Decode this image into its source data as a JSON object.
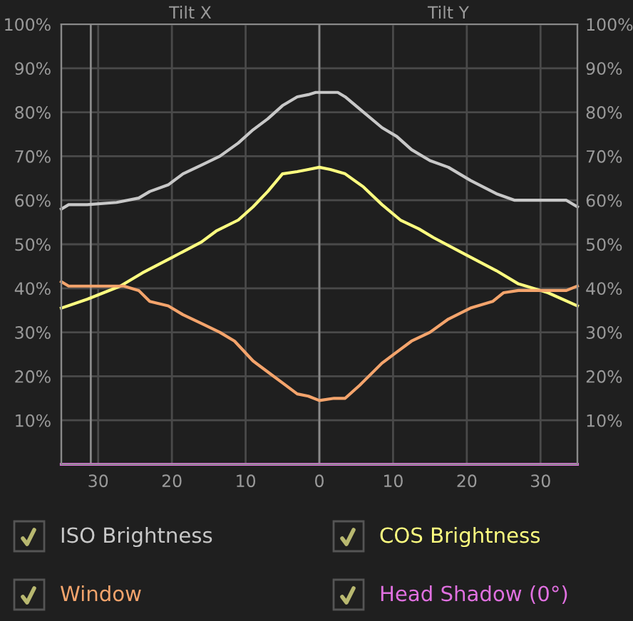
{
  "chart_data": {
    "type": "line",
    "annotations": [
      "Tilt X",
      "Tilt Y"
    ],
    "xlim": [
      -35,
      35
    ],
    "xticks": [
      {
        "value": -30,
        "label": "30"
      },
      {
        "value": -20,
        "label": "20"
      },
      {
        "value": -10,
        "label": "10"
      },
      0,
      10,
      20,
      30
    ],
    "ylim": [
      0,
      100
    ],
    "yticks": [
      {
        "value": 10,
        "label": "10%"
      },
      {
        "value": 20,
        "label": "20%"
      },
      {
        "value": 30,
        "label": "30%"
      },
      {
        "value": 40,
        "label": "40%"
      },
      {
        "value": 50,
        "label": "50%"
      },
      {
        "value": 60,
        "label": "60%"
      },
      {
        "value": 70,
        "label": "70%"
      },
      {
        "value": 80,
        "label": "80%"
      },
      {
        "value": 90,
        "label": "90%"
      },
      {
        "value": 100,
        "label": "100%"
      }
    ],
    "y2lim": [
      0,
      100
    ],
    "y2ticks": [
      {
        "value": 10,
        "label": "10%"
      },
      {
        "value": 20,
        "label": "20%"
      },
      {
        "value": 30,
        "label": "30%"
      },
      {
        "value": 40,
        "label": "40%"
      },
      {
        "value": 50,
        "label": "50%"
      },
      {
        "value": 60,
        "label": "60%"
      },
      {
        "value": 70,
        "label": "70%"
      },
      {
        "value": 80,
        "label": "80%"
      },
      {
        "value": 90,
        "label": "90%"
      },
      {
        "value": 100,
        "label": "100%"
      }
    ],
    "grid": true,
    "legend": "bottom",
    "marker": "none",
    "line_style": "solid",
    "ref_lines": [
      {
        "axis": "x",
        "value": -31,
        "color": "#8a8a8a"
      },
      {
        "axis": "x",
        "value": 0,
        "color": "#8a8a8a"
      }
    ],
    "series": [
      {
        "name": "ISO Brightness",
        "color": "#c8c8c8",
        "x": [
          -35,
          -34,
          -31.5,
          -27.5,
          -24.5,
          -23,
          -20.5,
          -18.5,
          -16,
          -13.5,
          -11,
          -9,
          -7,
          -5,
          -3,
          -1.5,
          -0.5,
          2.5,
          3.5,
          6,
          8.5,
          10.5,
          12.5,
          15,
          17.5,
          20.5,
          24,
          26.5,
          29,
          33.5,
          35
        ],
        "values": [
          58,
          59,
          59,
          59.5,
          60.5,
          62,
          63.5,
          66,
          68,
          70,
          73,
          76,
          78.5,
          81.5,
          83.5,
          84,
          84.5,
          84.5,
          83.5,
          80,
          76.5,
          74.5,
          71.5,
          69,
          67.5,
          64.5,
          61.5,
          60,
          60,
          60,
          58.5
        ]
      },
      {
        "name": "COS Brightness",
        "color": "#ffff80",
        "x": [
          -35,
          -31.5,
          -27,
          -24,
          -20,
          -16,
          -14,
          -11,
          -9,
          -7,
          -5,
          -3,
          -1.5,
          0,
          1.5,
          3.5,
          6,
          8.5,
          11,
          13.5,
          15.5,
          20,
          24,
          27,
          31,
          35
        ],
        "values": [
          35.5,
          37.5,
          40.5,
          43.5,
          47,
          50.5,
          53,
          55.5,
          58.5,
          62,
          66,
          66.5,
          67,
          67.5,
          67,
          66,
          63,
          59,
          55.5,
          53.5,
          51.5,
          47.5,
          44,
          41,
          39,
          36
        ]
      },
      {
        "name": "Window",
        "color": "#f4a46c",
        "x": [
          -35,
          -34,
          -31.5,
          -29,
          -26.5,
          -24.5,
          -23,
          -20.5,
          -18.5,
          -16,
          -13.5,
          -11.5,
          -9,
          -7,
          -5,
          -3,
          -1.5,
          0,
          2,
          3.5,
          5.5,
          8.5,
          10.5,
          12.5,
          15,
          17.5,
          20.5,
          23.5,
          25,
          27,
          30.5,
          33.5,
          35
        ],
        "values": [
          41.5,
          40.5,
          40.5,
          40.5,
          40.5,
          39.5,
          37,
          36,
          34,
          32,
          30,
          28,
          23.5,
          21,
          18.5,
          16,
          15.5,
          14.5,
          15,
          15,
          18,
          23,
          25.5,
          28,
          30,
          33,
          35.5,
          37,
          39,
          39.5,
          39.5,
          39.5,
          40.5
        ]
      },
      {
        "name": "Head Shadow (0°)",
        "color": "#e070e0",
        "x": [
          -35,
          35
        ],
        "values": [
          0,
          0
        ]
      }
    ]
  }
}
